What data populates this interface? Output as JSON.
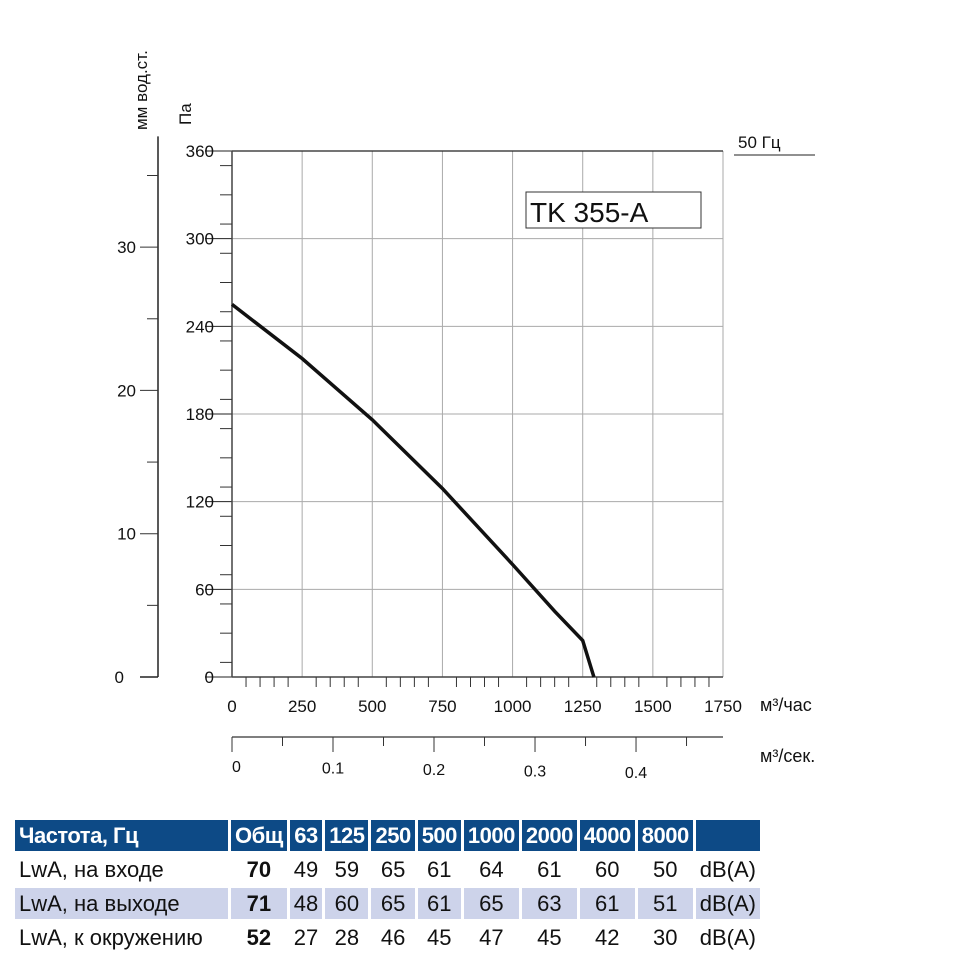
{
  "chart_data": {
    "type": "line",
    "model_label": "TK 355-A",
    "frequency_label": "50 Гц",
    "ylabel": "Па",
    "ylabel_secondary": "мм вод.ст.",
    "xlabel": "м³/час",
    "xlabel_secondary": "м³/сек.",
    "xlim": [
      0,
      1750
    ],
    "ylim": [
      0,
      360
    ],
    "x_ticks": [
      "0",
      "250",
      "500",
      "750",
      "1000",
      "1250",
      "1500",
      "1750"
    ],
    "y_ticks": [
      "0",
      "60",
      "120",
      "180",
      "240",
      "300",
      "360"
    ],
    "y2_ticks": [
      "0",
      "10",
      "20",
      "30"
    ],
    "x2_ticks": [
      "0",
      "0.1",
      "0.2",
      "0.3",
      "0.4"
    ],
    "grid": true,
    "series": [
      {
        "x": [
          0,
          250,
          500,
          750,
          1000,
          1150,
          1250,
          1290
        ],
        "y": [
          255,
          218,
          176,
          129,
          77,
          45,
          25,
          0
        ]
      }
    ]
  },
  "table": {
    "header": [
      "Частота, Гц",
      "Общ",
      "63",
      "125",
      "250",
      "500",
      "1000",
      "2000",
      "4000",
      "8000",
      ""
    ],
    "rows": [
      {
        "label": "LwA, на входе",
        "total": "70",
        "values": [
          "49",
          "59",
          "65",
          "61",
          "64",
          "61",
          "60",
          "50"
        ],
        "unit": "dB(A)"
      },
      {
        "label": "LwA, на выходе",
        "total": "71",
        "values": [
          "48",
          "60",
          "65",
          "61",
          "65",
          "63",
          "61",
          "51"
        ],
        "unit": "dB(A)"
      },
      {
        "label": "LwA, к окружению",
        "total": "52",
        "values": [
          "27",
          "28",
          "46",
          "45",
          "47",
          "45",
          "42",
          "30"
        ],
        "unit": "dB(A)"
      }
    ]
  }
}
